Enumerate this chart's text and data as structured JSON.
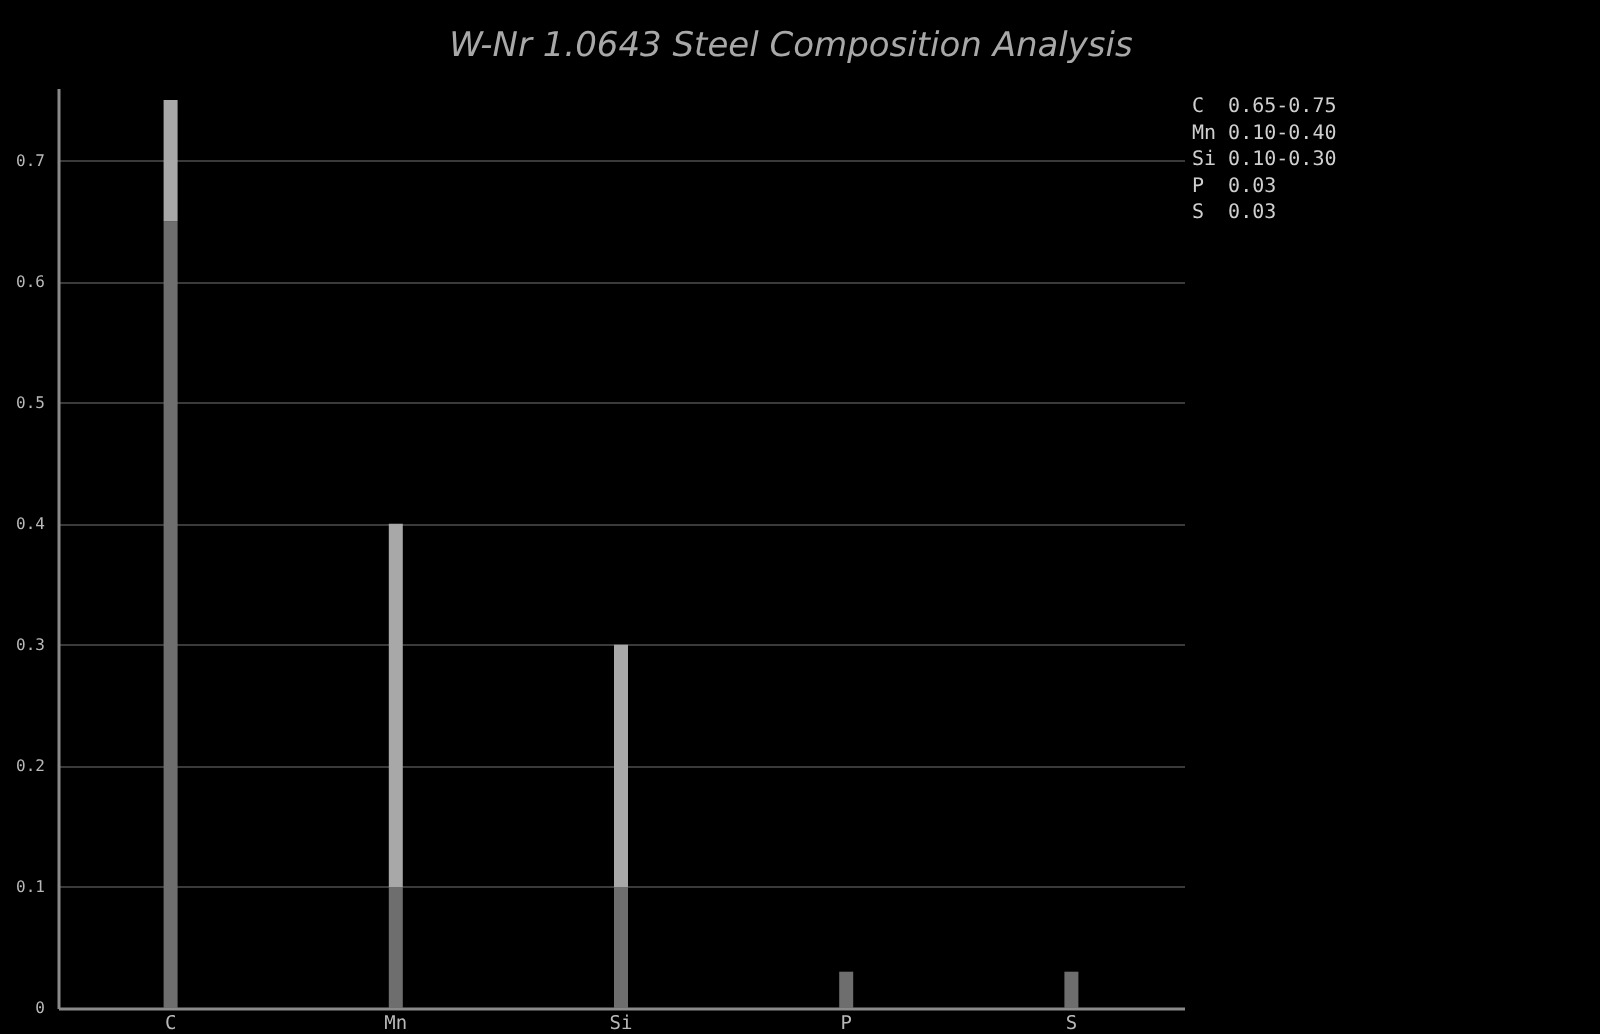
{
  "chart_data": {
    "type": "bar",
    "title": "W-Nr 1.0643 Steel Composition Analysis",
    "categories": [
      "C",
      "Mn",
      "Si",
      "P",
      "S"
    ],
    "series": [
      {
        "color": "#6e6e6e",
        "values": [
          0.65,
          0.1,
          0.1,
          0.03,
          0.03
        ]
      },
      {
        "color": "#a8a8a8",
        "values": [
          0.1,
          0.3,
          0.2,
          null,
          null
        ]
      }
    ],
    "stacked": true,
    "ylim": [
      0,
      0.76
    ],
    "yticks": [
      0,
      0.1,
      0.2,
      0.3,
      0.4,
      0.5,
      0.6,
      0.7
    ],
    "grid": "y",
    "annotations": [
      "C  0.65-0.75",
      "Mn 0.10-0.40",
      "Si 0.10-0.30",
      "P  0.03",
      "S  0.03"
    ]
  }
}
